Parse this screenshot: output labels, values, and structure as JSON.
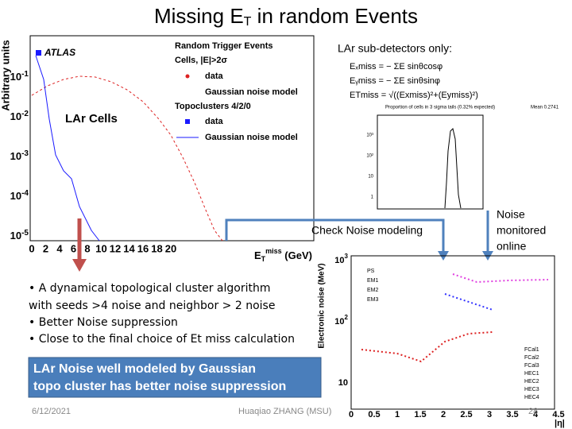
{
  "title": {
    "main": "Missing E",
    "sub": "T",
    "rest": " in random Events"
  },
  "left_plot": {
    "y_label": "Arbitrary units",
    "yticks": [
      {
        "base": "10",
        "exp": "-1"
      },
      {
        "base": "10",
        "exp": "-2"
      },
      {
        "base": "10",
        "exp": "-3"
      },
      {
        "base": "10",
        "exp": "-4"
      },
      {
        "base": "10",
        "exp": "-5"
      }
    ],
    "xticks": [
      "0",
      "2",
      "4",
      "6",
      "8",
      "10",
      "12",
      "14",
      "16",
      "18",
      "20"
    ],
    "x_label": {
      "main": "E",
      "sub": "T",
      "sup": "miss",
      "unit": " (GeV)"
    },
    "atlas": "ATLAS",
    "cells_label": "LAr Cells",
    "legend": {
      "heading": "Random Trigger Events",
      "cells": "Cells, |E|>2σ",
      "cells_data": "data",
      "cells_model": "Gaussian noise model",
      "topo": "Topoclusters 4/2/0",
      "topo_data": "data",
      "topo_model": "Gaussian noise model"
    }
  },
  "right_top": {
    "heading": "LAr sub-detectors  only:",
    "formulas": [
      "Eₓmiss = − ΣE sinθcosφ",
      "Eᵧmiss = − ΣE sinθsinφ",
      "ETmiss = √((Exmiss)²+(Eymiss)²)"
    ],
    "hist_caption": "Proportion of cells in 3 sigma tails (0.32% expected)",
    "hist_mean": "Mean  0.2741",
    "hist_yticks": [
      "10³",
      "10²",
      "10",
      "1"
    ]
  },
  "callouts": {
    "check": "Check Noise modeling",
    "noise": [
      "Noise",
      "monitored",
      "online"
    ]
  },
  "bullets": [
    "• A dynamical topological cluster algorithm",
    "with seeds >4 noise and neighbor > 2 noise",
    "• Better  Noise suppression",
    "• Close to the final choice of Et miss calculation"
  ],
  "box": [
    "LAr Noise well modeled by Gaussian",
    "topo cluster has better noise suppression"
  ],
  "right_bottom": {
    "y_label": "Electronic noise (MeV)",
    "yticks": [
      {
        "base": "10",
        "exp": "3"
      },
      {
        "base": "10",
        "exp": "2"
      },
      {
        "base": "10",
        "exp": ""
      }
    ],
    "xticks": [
      "0",
      "0.5",
      "1",
      "1.5",
      "2",
      "2.5",
      "3",
      "3.5",
      "4",
      "4.5"
    ],
    "x_label": "|η|",
    "legend_em": [
      "PS",
      "EM1",
      "EM2",
      "EM3"
    ],
    "legend_had": [
      "FCal1",
      "FCal2",
      "FCal3",
      "HEC1",
      "HEC2",
      "HEC3",
      "HEC4"
    ]
  },
  "footer": {
    "date": "6/12/2021",
    "author": "Huaqiao ZHANG (MSU)",
    "page": "28"
  }
}
